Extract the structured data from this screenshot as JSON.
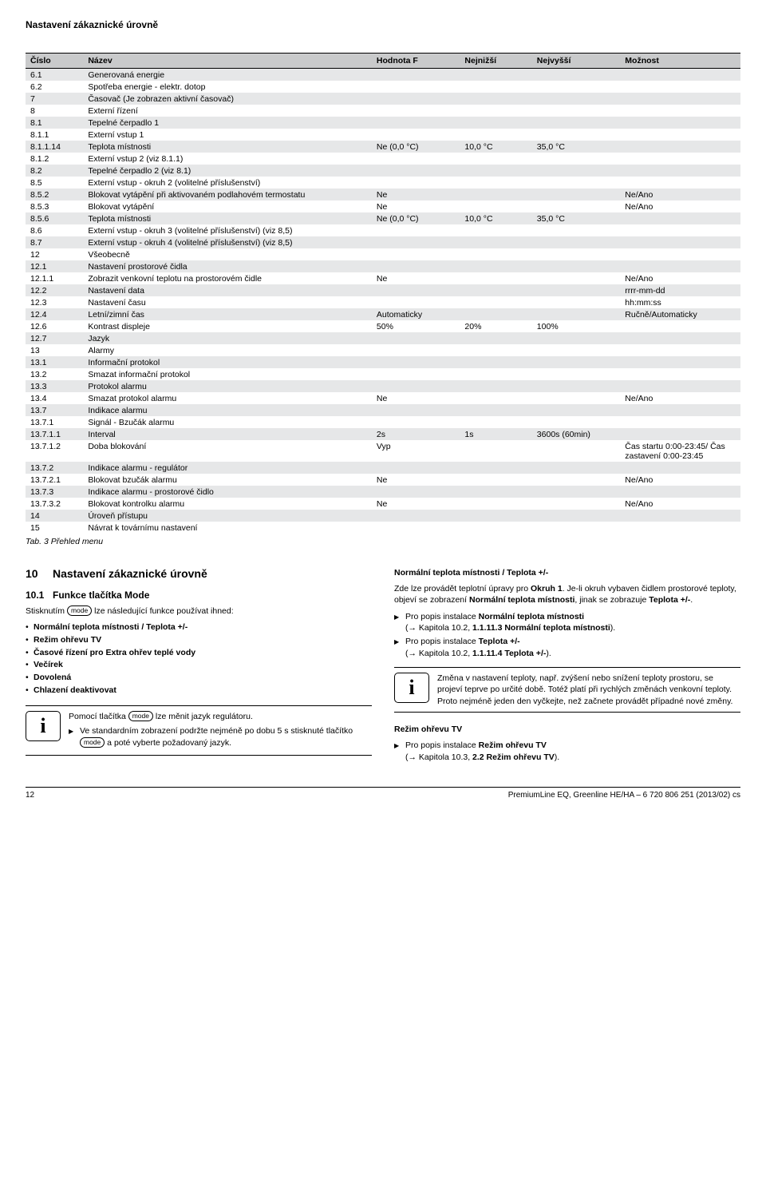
{
  "page_heading": "Nastavení zákaznické úrovně",
  "table": {
    "headers": [
      "Číslo",
      "Název",
      "Hodnota F",
      "Nejnižší",
      "Nejvyšší",
      "Možnost"
    ],
    "rows": [
      [
        "6.1",
        "Generovaná energie",
        "",
        "",
        "",
        ""
      ],
      [
        "6.2",
        "Spotřeba energie - elektr. dotop",
        "",
        "",
        "",
        ""
      ],
      [
        "7",
        "Časovač (Je zobrazen aktivní časovač)",
        "",
        "",
        "",
        ""
      ],
      [
        "8",
        "Externí řízení",
        "",
        "",
        "",
        ""
      ],
      [
        "8.1",
        "Tepelné čerpadlo 1",
        "",
        "",
        "",
        ""
      ],
      [
        "8.1.1",
        "Externí vstup 1",
        "",
        "",
        "",
        ""
      ],
      [
        "8.1.1.14",
        "Teplota místnosti",
        "Ne (0,0 °C)",
        "10,0 °C",
        "35,0 °C",
        ""
      ],
      [
        "8.1.2",
        "Externí vstup 2 (viz 8.1.1)",
        "",
        "",
        "",
        ""
      ],
      [
        "8.2",
        "Tepelné čerpadlo 2 (viz 8.1)",
        "",
        "",
        "",
        ""
      ],
      [
        "8.5",
        "Externí vstup - okruh 2 (volitelné příslušenství)",
        "",
        "",
        "",
        ""
      ],
      [
        "8.5.2",
        "Blokovat vytápění při aktivovaném podlahovém termostatu",
        "Ne",
        "",
        "",
        "Ne/Ano"
      ],
      [
        "8.5.3",
        "Blokovat vytápění",
        "Ne",
        "",
        "",
        "Ne/Ano"
      ],
      [
        "8.5.6",
        "Teplota místnosti",
        "Ne (0,0 °C)",
        "10,0 °C",
        "35,0 °C",
        ""
      ],
      [
        "8.6",
        "Externí vstup - okruh 3 (volitelné příslušenství) (viz 8,5)",
        "",
        "",
        "",
        ""
      ],
      [
        "8.7",
        "Externí vstup - okruh 4 (volitelné příslušenství) (viz 8,5)",
        "",
        "",
        "",
        ""
      ],
      [
        "12",
        "Všeobecně",
        "",
        "",
        "",
        ""
      ],
      [
        "12.1",
        "Nastavení prostorové čidla",
        "",
        "",
        "",
        ""
      ],
      [
        "12.1.1",
        "Zobrazit venkovní teplotu na prostorovém čidle",
        "Ne",
        "",
        "",
        "Ne/Ano"
      ],
      [
        "12.2",
        "Nastavení data",
        "",
        "",
        "",
        "rrrr-mm-dd"
      ],
      [
        "12.3",
        "Nastavení času",
        "",
        "",
        "",
        "hh:mm:ss"
      ],
      [
        "12.4",
        "Letní/zimní čas",
        "Automaticky",
        "",
        "",
        "Ručně/Automaticky"
      ],
      [
        "12.6",
        "Kontrast displeje",
        "50%",
        "20%",
        "100%",
        ""
      ],
      [
        "12.7",
        "Jazyk",
        "",
        "",
        "",
        ""
      ],
      [
        "13",
        "Alarmy",
        "",
        "",
        "",
        ""
      ],
      [
        "13.1",
        "Informační protokol",
        "",
        "",
        "",
        ""
      ],
      [
        "13.2",
        "Smazat informační protokol",
        "",
        "",
        "",
        ""
      ],
      [
        "13.3",
        "Protokol alarmu",
        "",
        "",
        "",
        ""
      ],
      [
        "13.4",
        "Smazat protokol alarmu",
        "Ne",
        "",
        "",
        "Ne/Ano"
      ],
      [
        "13.7",
        "Indikace alarmu",
        "",
        "",
        "",
        ""
      ],
      [
        "13.7.1",
        "Signál - Bzučák alarmu",
        "",
        "",
        "",
        ""
      ],
      [
        "13.7.1.1",
        "Interval",
        "2s",
        "1s",
        "3600s (60min)",
        ""
      ],
      [
        "13.7.1.2",
        "Doba blokování",
        "Vyp",
        "",
        "",
        "Čas startu 0:00-23:45/ Čas zastavení 0:00-23:45"
      ],
      [
        "13.7.2",
        "Indikace alarmu - regulátor",
        "",
        "",
        "",
        ""
      ],
      [
        "13.7.2.1",
        "Blokovat bzučák alarmu",
        "Ne",
        "",
        "",
        "Ne/Ano"
      ],
      [
        "13.7.3",
        "Indikace alarmu - prostorové čidlo",
        "",
        "",
        "",
        ""
      ],
      [
        "13.7.3.2",
        "Blokovat kontrolku alarmu",
        "Ne",
        "",
        "",
        "Ne/Ano"
      ],
      [
        "14",
        "Úroveň přístupu",
        "",
        "",
        "",
        ""
      ],
      [
        "15",
        "Návrat k továrnímu nastavení",
        "",
        "",
        "",
        ""
      ]
    ]
  },
  "tab_caption": "Tab. 3 Přehled menu",
  "left": {
    "sec_num": "10",
    "sec_title": "Nastavení zákaznické úrovně",
    "sub_num": "10.1",
    "sub_title": "Funkce tlačítka Mode",
    "intro_a": "Stisknutím ",
    "intro_b": " lze následující funkce používat ihned:",
    "mode_label": "mode",
    "bullets": [
      "Normální teplota místnosti / Teplota +/-",
      "Režim ohřevu TV",
      "Časové řízení pro Extra ohřev teplé vody",
      "Večírek",
      "Dovolená",
      "Chlazení deaktivovat"
    ],
    "info_a": "Pomocí tlačítka ",
    "info_b": " lze měnit jazyk regulátoru.",
    "info_c": "Ve standardním zobrazení podržte nejméně po dobu 5 s stisknuté tlačítko ",
    "info_d": " a poté vyberte požadovaný jazyk."
  },
  "right": {
    "h1": "Normální teplota místnosti / Teplota +/-",
    "p1a": "Zde lze provádět teplotní úpravy pro ",
    "p1b": "Okruh 1",
    "p1c": ". Je-li okruh vybaven čidlem prostorové teploty, objeví se zobrazení ",
    "p1d": "Normální teplota místnosti",
    "p1e": ", jinak se zobrazuje ",
    "p1f": "Teplota +/-",
    "p1g": ".",
    "a1a": "Pro popis instalace ",
    "a1b": "Normální teplota místnosti",
    "a1c": "(→ Kapitola 10.2, ",
    "a1d": "1.1.11.3 Normální teplota místnosti",
    "a1e": ").",
    "a2a": "Pro popis instalace ",
    "a2b": "Teplota +/-",
    "a2c": "(→ Kapitola 10.2, ",
    "a2d": "1.1.11.4 Teplota +/-",
    "a2e": ").",
    "info": "Změna v nastavení teploty, např. zvýšení nebo snížení teploty prostoru, se projeví teprve po určité době. Totéž platí při rychlých změnách venkovní teploty. Proto nejméně jeden den vyčkejte, než začnete provádět případné nové změny.",
    "h2": "Režim ohřevu TV",
    "a3a": "Pro popis instalace ",
    "a3b": "Režim ohřevu TV",
    "a3c": "(→ Kapitola 10.3, ",
    "a3d": "2.2 Režim ohřevu TV",
    "a3e": ")."
  },
  "footer": {
    "page": "12",
    "doc": "PremiumLine EQ, Greenline HE/HA – 6 720 806 251 (2013/02) cs"
  }
}
